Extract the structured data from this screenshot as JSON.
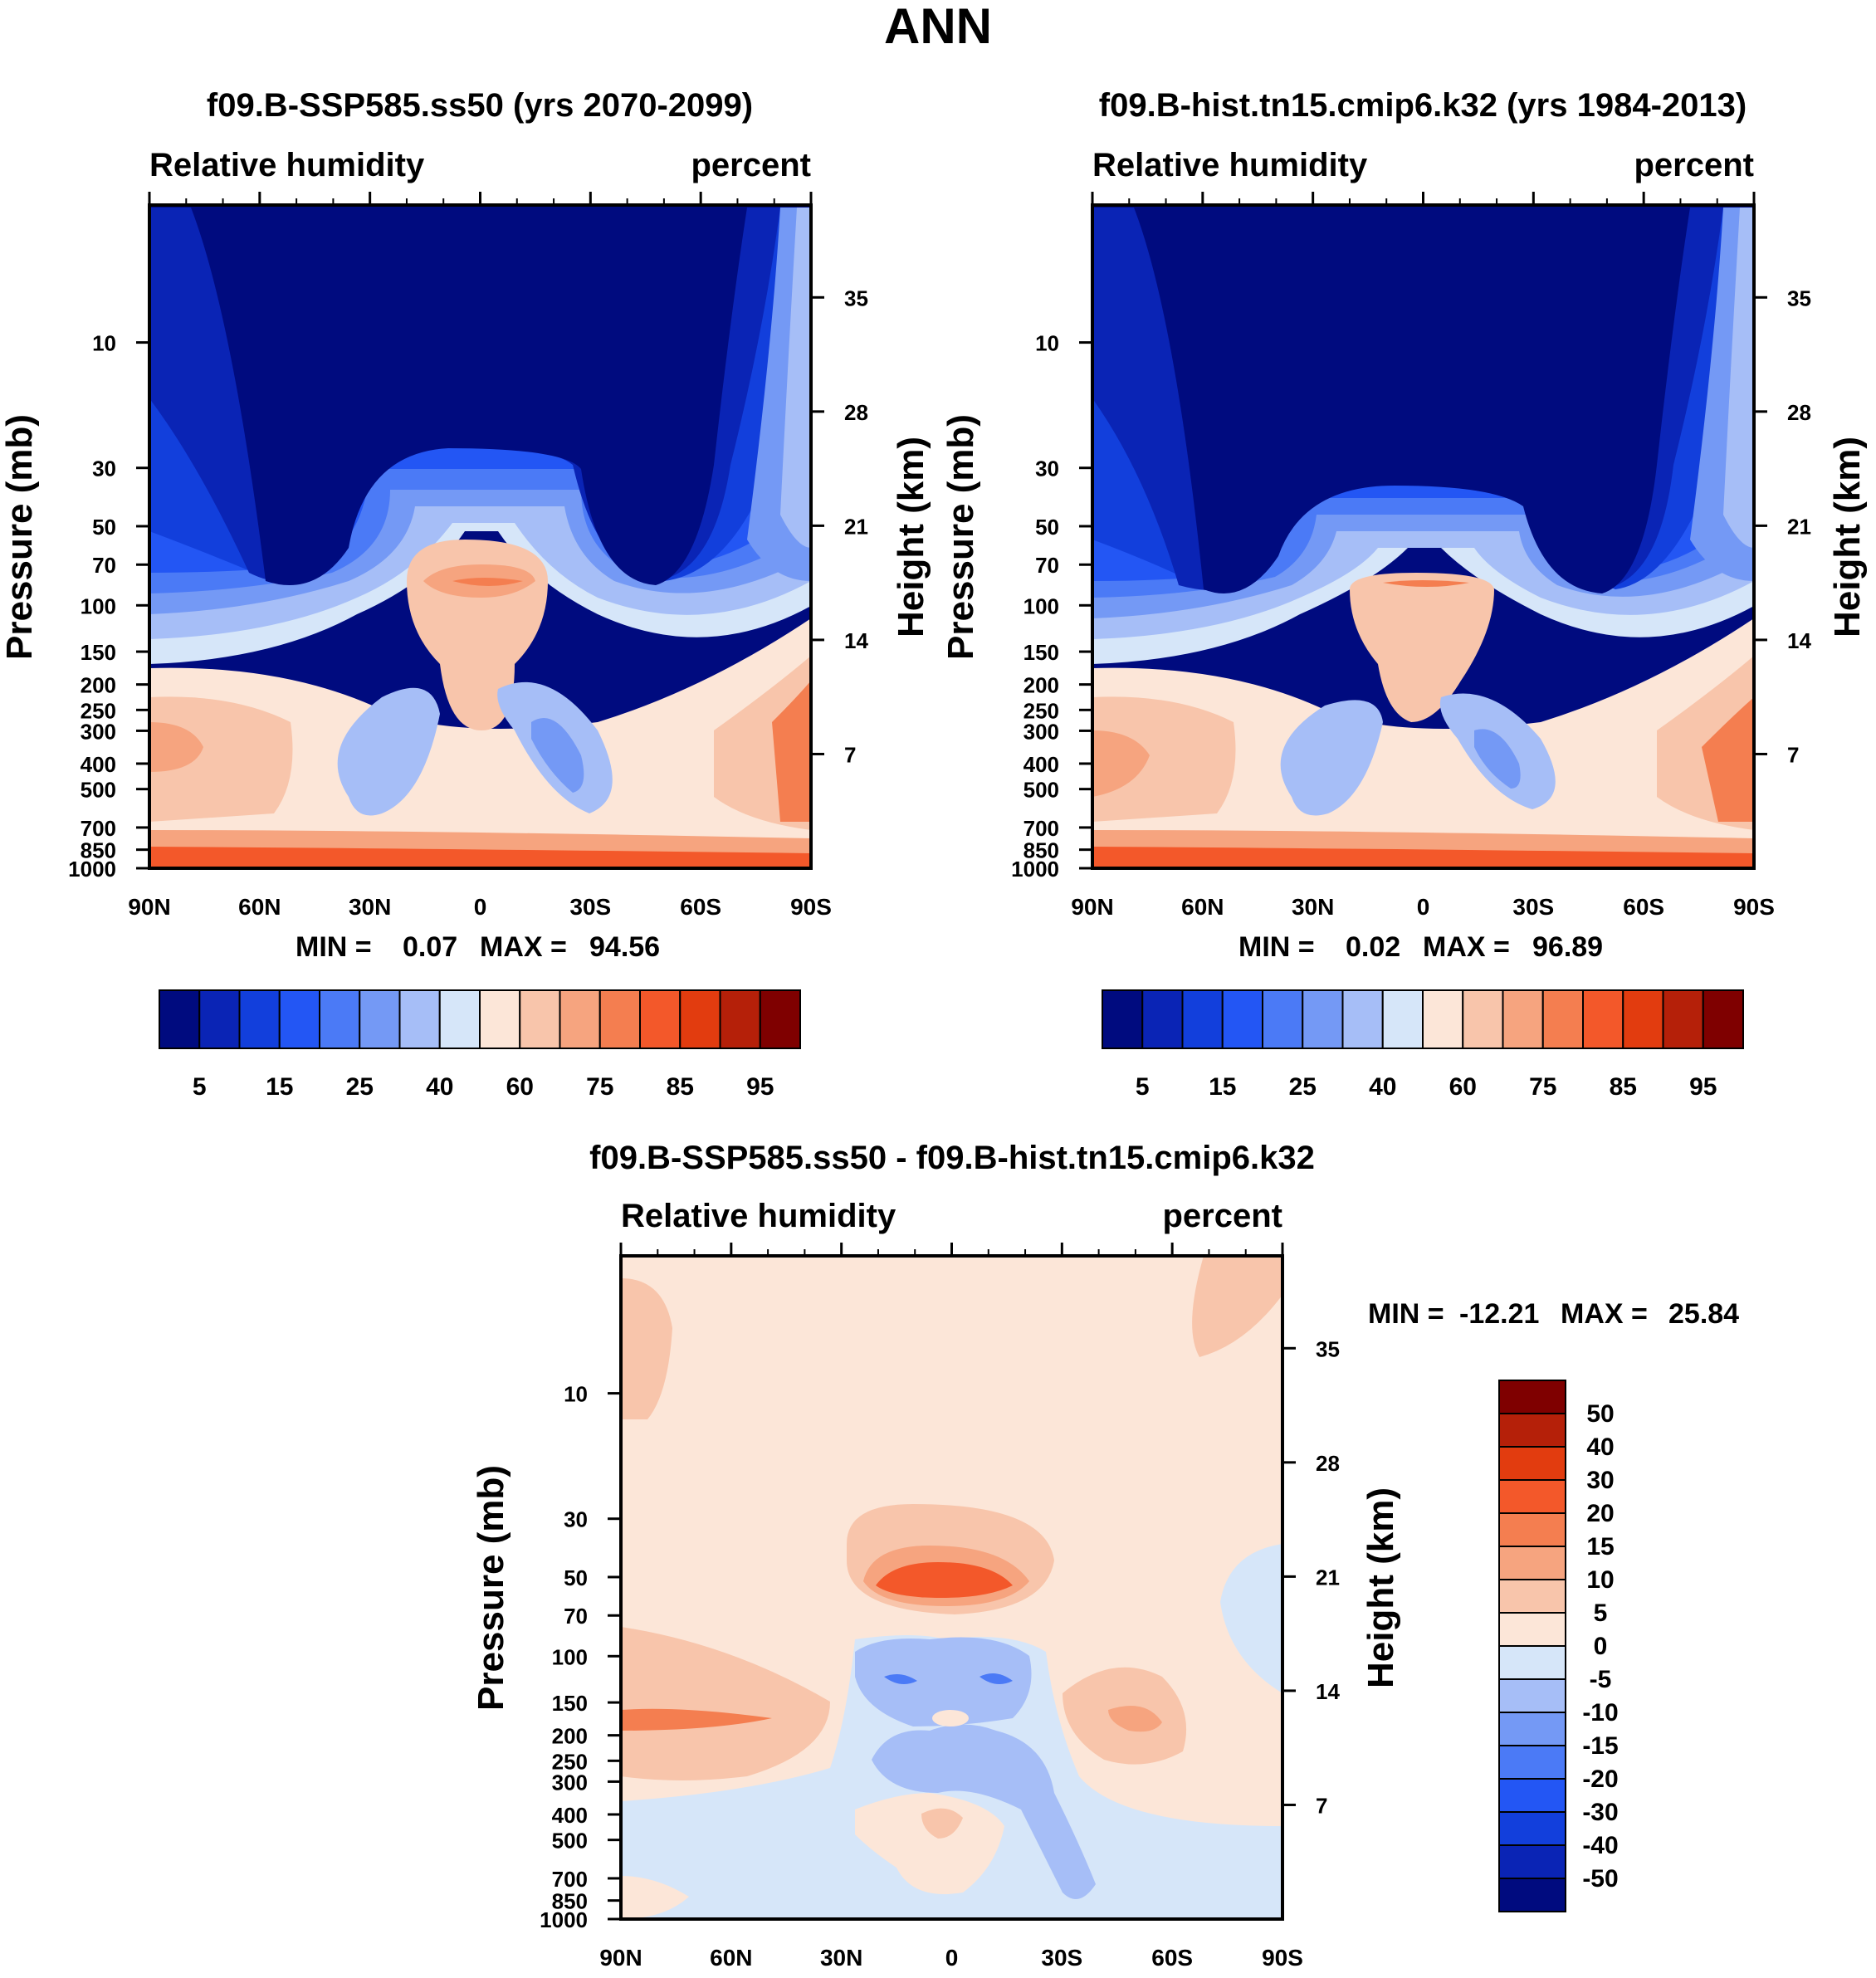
{
  "figure": {
    "title": "ANN"
  },
  "chart_data": [
    {
      "type": "contour",
      "title": "f09.B-SSP585.ss50 (yrs 2070-2099)",
      "variable": "Relative humidity",
      "units": "percent",
      "x_ticks": [
        "90N",
        "60N",
        "30N",
        "0",
        "30S",
        "60S",
        "90S"
      ],
      "x_values": [
        90,
        60,
        30,
        0,
        -30,
        -60,
        -90
      ],
      "y_label": "Pressure (mb)",
      "y_ticks": [
        10,
        30,
        50,
        70,
        100,
        150,
        200,
        250,
        300,
        400,
        500,
        700,
        850,
        1000
      ],
      "y2_label": "Height (km)",
      "y2_ticks": [
        35,
        28,
        21,
        14,
        7
      ],
      "ylim_mb": [
        3,
        1000
      ],
      "stats": {
        "min_label": "MIN =",
        "min": "0.07",
        "max_label": "MAX =",
        "max": "94.56"
      },
      "contour_levels": [
        5,
        10,
        15,
        20,
        25,
        30,
        40,
        50,
        60,
        70,
        75,
        80,
        85,
        90,
        95
      ],
      "colorbar_labels": [
        "5",
        "15",
        "25",
        "40",
        "60",
        "75",
        "85",
        "95"
      ],
      "colormap": [
        "#000B7F",
        "#0A24B5",
        "#123FDC",
        "#2356F4",
        "#4B7AF6",
        "#7499F5",
        "#A6BEF7",
        "#D6E6F9",
        "#FCE6D8",
        "#F8C5AB",
        "#F6A47F",
        "#F47E50",
        "#F3582A",
        "#E23C0F",
        "#B52009",
        "#7F0000"
      ]
    },
    {
      "type": "contour",
      "title": "f09.B-hist.tn15.cmip6.k32 (yrs 1984-2013)",
      "variable": "Relative humidity",
      "units": "percent",
      "x_ticks": [
        "90N",
        "60N",
        "30N",
        "0",
        "30S",
        "60S",
        "90S"
      ],
      "x_values": [
        90,
        60,
        30,
        0,
        -30,
        -60,
        -90
      ],
      "y_label": "Pressure (mb)",
      "y_ticks": [
        10,
        30,
        50,
        70,
        100,
        150,
        200,
        250,
        300,
        400,
        500,
        700,
        850,
        1000
      ],
      "y2_label": "Height (km)",
      "y2_ticks": [
        35,
        28,
        21,
        14,
        7
      ],
      "ylim_mb": [
        3,
        1000
      ],
      "stats": {
        "min_label": "MIN =",
        "min": "0.02",
        "max_label": "MAX =",
        "max": "96.89"
      },
      "contour_levels": [
        5,
        10,
        15,
        20,
        25,
        30,
        40,
        50,
        60,
        70,
        75,
        80,
        85,
        90,
        95
      ],
      "colorbar_labels": [
        "5",
        "15",
        "25",
        "40",
        "60",
        "75",
        "85",
        "95"
      ],
      "colormap": [
        "#000B7F",
        "#0A24B5",
        "#123FDC",
        "#2356F4",
        "#4B7AF6",
        "#7499F5",
        "#A6BEF7",
        "#D6E6F9",
        "#FCE6D8",
        "#F8C5AB",
        "#F6A47F",
        "#F47E50",
        "#F3582A",
        "#E23C0F",
        "#B52009",
        "#7F0000"
      ]
    },
    {
      "type": "contour",
      "title": "f09.B-SSP585.ss50 - f09.B-hist.tn15.cmip6.k32",
      "variable": "Relative humidity",
      "units": "percent",
      "x_ticks": [
        "90N",
        "60N",
        "30N",
        "0",
        "30S",
        "60S",
        "90S"
      ],
      "x_values": [
        90,
        60,
        30,
        0,
        -30,
        -60,
        -90
      ],
      "y_label": "Pressure (mb)",
      "y_ticks": [
        10,
        30,
        50,
        70,
        100,
        150,
        200,
        250,
        300,
        400,
        500,
        700,
        850,
        1000
      ],
      "y2_label": "Height (km)",
      "y2_ticks": [
        35,
        28,
        21,
        14,
        7
      ],
      "ylim_mb": [
        3,
        1000
      ],
      "stats": {
        "min_label": "MIN =",
        "min": "-12.21",
        "max_label": "MAX =",
        "max": "25.84"
      },
      "contour_levels": [
        -50,
        -40,
        -30,
        -20,
        -15,
        -10,
        -5,
        0,
        5,
        10,
        15,
        20,
        30,
        40,
        50
      ],
      "colorbar_labels": [
        "50",
        "40",
        "30",
        "20",
        "15",
        "10",
        "5",
        "0",
        "-5",
        "-10",
        "-15",
        "-20",
        "-30",
        "-40",
        "-50"
      ],
      "colormap": [
        "#7F0000",
        "#B52009",
        "#E23C0F",
        "#F3582A",
        "#F47E50",
        "#F6A47F",
        "#F8C5AB",
        "#FCE6D8",
        "#D6E6F9",
        "#A6BEF7",
        "#7499F5",
        "#4B7AF6",
        "#2356F4",
        "#123FDC",
        "#0A24B5",
        "#000B7F"
      ]
    }
  ]
}
